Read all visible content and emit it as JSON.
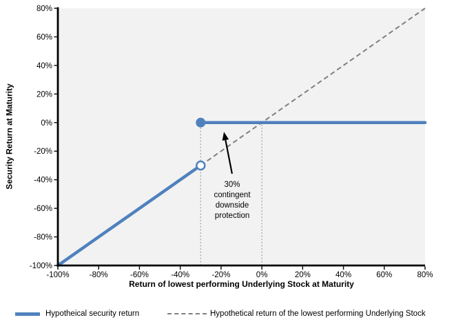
{
  "chart_data": {
    "type": "line",
    "title": "",
    "xlabel": "Return of lowest performing Underlying Stock at Maturity",
    "ylabel": "Security Return at Maturity",
    "xlim": [
      -100,
      80
    ],
    "ylim": [
      -100,
      80
    ],
    "x_ticks": [
      -100,
      -80,
      -60,
      -40,
      -20,
      0,
      20,
      40,
      60,
      80
    ],
    "y_ticks": [
      80,
      60,
      40,
      20,
      0,
      -20,
      -40,
      -60,
      -80,
      -100
    ],
    "tick_suffix": "%",
    "grid": false,
    "plot_background": "#f2f2f2",
    "axis_color": "#000000",
    "series": [
      {
        "name": "Hypotheical security return",
        "color": "#4f81bd",
        "line_style": "solid",
        "line_width": 4.5,
        "segments": [
          [
            [
              -100,
              -100
            ],
            [
              -30,
              -30
            ]
          ],
          [
            [
              -30,
              0
            ],
            [
              80,
              0
            ]
          ]
        ],
        "markers": [
          {
            "x": -30,
            "y": -30,
            "style": "open"
          },
          {
            "x": -30,
            "y": 0,
            "style": "filled"
          }
        ]
      },
      {
        "name": "Hypothetical return of the lowest performing Underlying Stock",
        "color": "#7f7f7f",
        "line_style": "dashed",
        "line_width": 2,
        "segments": [
          [
            [
              -100,
              -100
            ],
            [
              80,
              80
            ]
          ]
        ],
        "markers": []
      }
    ],
    "reference_lines": [
      {
        "x": -30,
        "y_from": -100,
        "y_to": 0,
        "color": "#ababab",
        "style": "dotted"
      },
      {
        "x": 0,
        "y_from": -100,
        "y_to": 0,
        "color": "#ababab",
        "style": "dotted"
      }
    ],
    "annotation": {
      "text_lines": [
        "30%",
        "contingent",
        "downside",
        "protection"
      ],
      "arrow": {
        "from": {
          "x": -14.6,
          "y": -35.8
        },
        "to": {
          "x": -18.6,
          "y": -6.5
        }
      },
      "color": "#000000"
    },
    "legend": {
      "position": "bottom",
      "items": [
        {
          "label": "Hypotheical security return",
          "swatch": "solid",
          "color": "#4f81bd"
        },
        {
          "label": "Hypothetical return of the lowest performing Underlying Stock",
          "swatch": "dashed",
          "color": "#7f7f7f"
        }
      ]
    }
  }
}
